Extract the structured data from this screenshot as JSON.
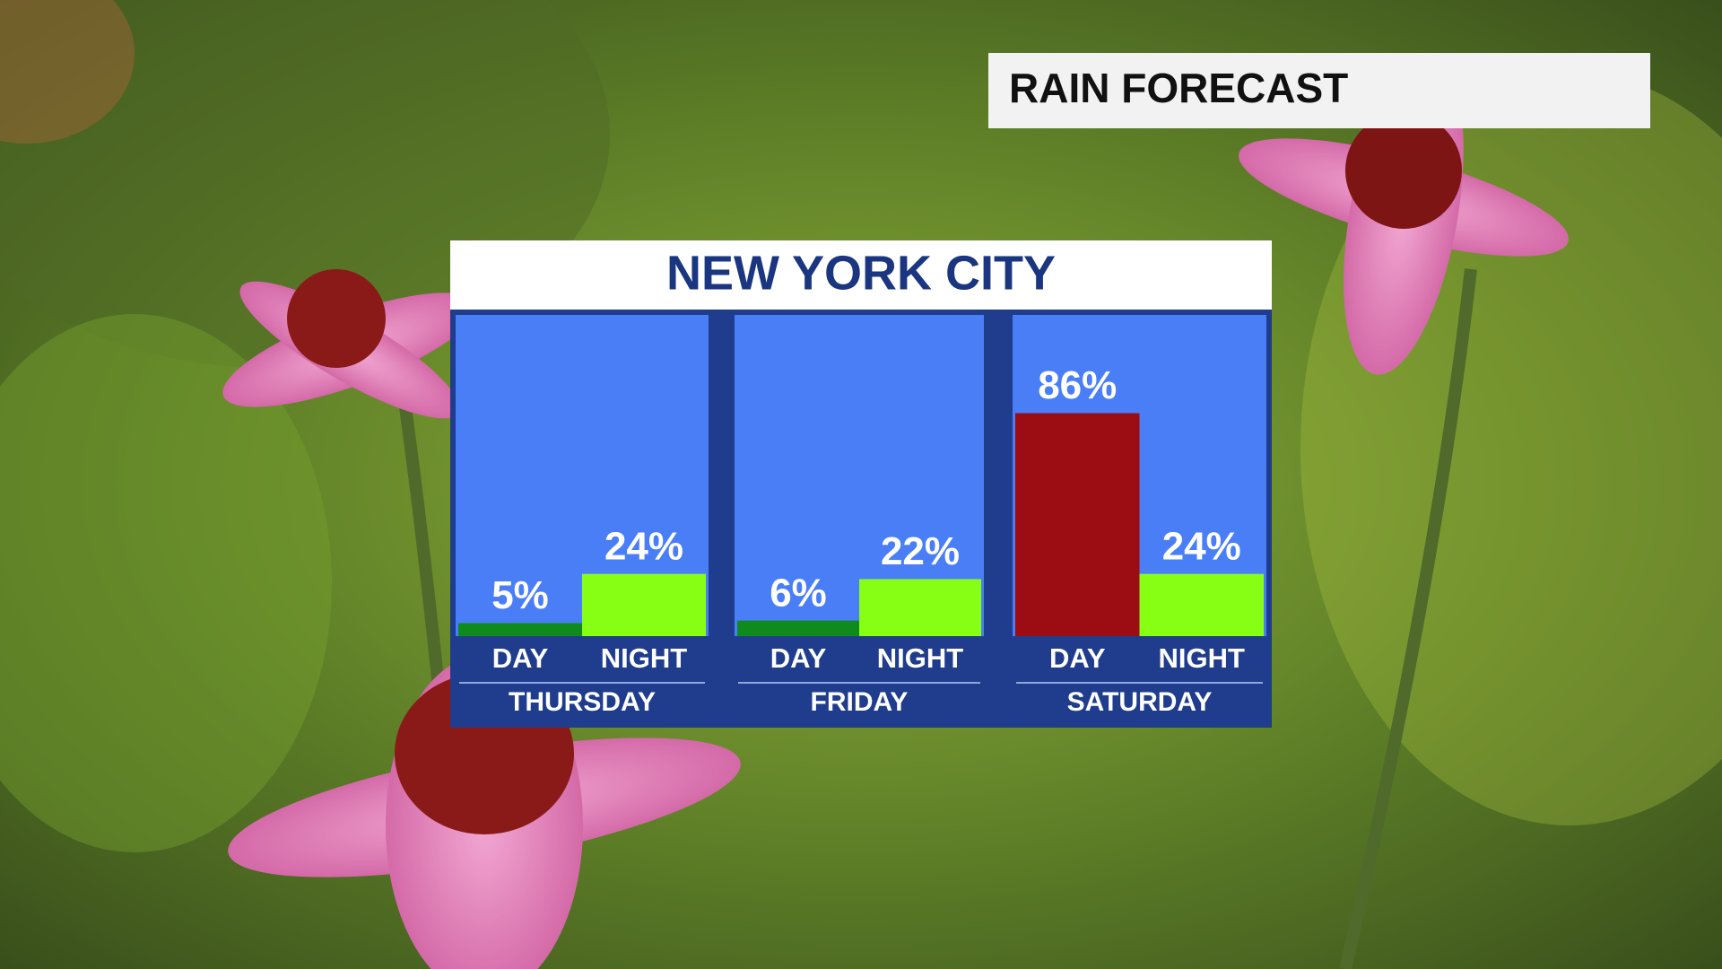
{
  "chart_data": {
    "type": "bar",
    "subtitle": "RAIN FORECAST",
    "title": "NEW YORK CITY",
    "categories": [
      "THURSDAY",
      "FRIDAY",
      "SATURDAY"
    ],
    "series": [
      {
        "name": "DAY",
        "colors": [
          "#0f8a1c",
          "#0f8a1c",
          "#9b0d12"
        ],
        "values": [
          5,
          6,
          86
        ],
        "value_labels": [
          "5%",
          "6%",
          "86%"
        ]
      },
      {
        "name": "NIGHT",
        "colors": [
          "#86ff14",
          "#86ff14",
          "#86ff14"
        ],
        "values": [
          24,
          22,
          24
        ],
        "value_labels": [
          "24%",
          "22%",
          "24%"
        ]
      }
    ],
    "ylim": [
      0,
      100
    ]
  }
}
